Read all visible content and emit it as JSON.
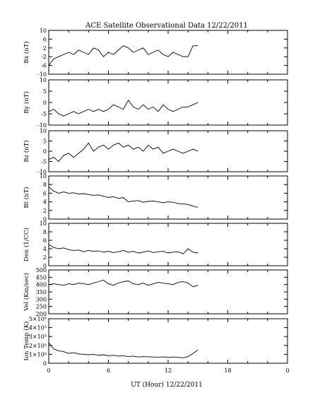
{
  "chart_data": {
    "type": "line",
    "title": "ACE Satellite Observational Data   12/22/2011",
    "xlabel": "UT (Hour)   12/22/2011",
    "xlim": [
      0,
      24
    ],
    "xticks": [
      "0",
      "6",
      "12",
      "18",
      "0"
    ],
    "x_range_of_data": [
      0,
      15.2
    ],
    "panels": [
      {
        "name": "Bx",
        "ylabel": "Bx (nT)",
        "ylim": [
          -10,
          10
        ],
        "ytick_values": [
          10,
          6,
          2,
          -2,
          -6,
          -10
        ],
        "ytick_labels": [
          "10",
          "6",
          "2",
          "-2",
          "-6",
          "-10"
        ],
        "series": [
          {
            "x": [
              0,
              0.5,
              1,
              1.5,
              2,
              2.5,
              3,
              3.5,
              4,
              4.5,
              5,
              5.5,
              6,
              6.5,
              7,
              7.5,
              8,
              8.5,
              9,
              9.5,
              10,
              10.5,
              11,
              11.5,
              12,
              12.5,
              13,
              13.5,
              14,
              14.5,
              15
            ],
            "y": [
              -6,
              -3,
              -2,
              -1,
              0,
              -1,
              1,
              0,
              -1,
              2,
              1,
              -2,
              0,
              -1,
              1,
              3,
              2,
              0,
              1,
              2,
              -1,
              0,
              1,
              -1,
              -2,
              0,
              -1,
              -2,
              -2,
              3,
              3
            ]
          }
        ]
      },
      {
        "name": "By",
        "ylabel": "By (nT)",
        "ylim": [
          -10,
          10
        ],
        "ytick_values": [
          10,
          5,
          0,
          -5,
          -10
        ],
        "ytick_labels": [
          "10",
          "5",
          "0",
          "-5",
          "-10"
        ],
        "series": [
          {
            "x": [
              0,
              0.5,
              1,
              1.5,
              2,
              2.5,
              3,
              3.5,
              4,
              4.5,
              5,
              5.5,
              6,
              6.5,
              7,
              7.5,
              8,
              8.5,
              9,
              9.5,
              10,
              10.5,
              11,
              11.5,
              12,
              12.5,
              13,
              13.5,
              14,
              14.5,
              15
            ],
            "y": [
              -4,
              -3,
              -5,
              -6,
              -5,
              -4,
              -5,
              -4,
              -3,
              -4,
              -3,
              -4,
              -3,
              -1,
              -2,
              -3,
              1,
              -2,
              -3,
              -1,
              -3,
              -2,
              -4,
              -1,
              -3,
              -4,
              -3,
              -2,
              -2,
              -1,
              0
            ]
          }
        ]
      },
      {
        "name": "Bz",
        "ylabel": "Bz (nT)",
        "ylim": [
          -10,
          10
        ],
        "ytick_values": [
          10,
          5,
          0,
          -5,
          -10
        ],
        "ytick_labels": [
          "10",
          "5",
          "0",
          "-5",
          "-10"
        ],
        "series": [
          {
            "x": [
              0,
              0.5,
              1,
              1.5,
              2,
              2.5,
              3,
              3.5,
              4,
              4.5,
              5,
              5.5,
              6,
              6.5,
              7,
              7.5,
              8,
              8.5,
              9,
              9.5,
              10,
              10.5,
              11,
              11.5,
              12,
              12.5,
              13,
              13.5,
              14,
              14.5,
              15
            ],
            "y": [
              -4,
              -3,
              -5,
              -2,
              -1,
              -3,
              -1,
              1,
              4,
              0,
              2,
              3,
              1,
              3,
              4,
              2,
              3,
              1,
              2,
              0,
              3,
              1,
              2,
              -1,
              0,
              1,
              0,
              -1,
              0,
              1,
              0
            ]
          }
        ]
      },
      {
        "name": "Bt",
        "ylabel": "Bt (nT)",
        "ylim": [
          0,
          10
        ],
        "ytick_values": [
          10,
          8,
          6,
          4,
          2,
          0
        ],
        "ytick_labels": [
          "10",
          "8",
          "6",
          "4",
          "2",
          "0"
        ],
        "series": [
          {
            "x": [
              0,
              0.5,
              1,
              1.5,
              2,
              2.5,
              3,
              3.5,
              4,
              4.5,
              5,
              5.5,
              6,
              6.5,
              7,
              7.5,
              8,
              8.5,
              9,
              9.5,
              10,
              10.5,
              11,
              11.5,
              12,
              12.5,
              13,
              13.5,
              14,
              14.5,
              15
            ],
            "y": [
              7.5,
              6.5,
              6,
              6.3,
              6,
              6.1,
              5.8,
              5.9,
              5.7,
              5.5,
              5.6,
              5.3,
              5,
              5.2,
              4.8,
              5,
              4,
              4.2,
              4.3,
              3.9,
              4.1,
              4.2,
              4,
              3.8,
              4,
              3.9,
              3.6,
              3.5,
              3.4,
              3,
              2.7
            ]
          }
        ]
      },
      {
        "name": "Den",
        "ylabel": "Den (1/CC)",
        "ylim": [
          0,
          10
        ],
        "ytick_values": [
          10,
          8,
          6,
          4,
          2,
          0
        ],
        "ytick_labels": [
          "10",
          "8",
          "6",
          "4",
          "2",
          "0"
        ],
        "series": [
          {
            "x": [
              0,
              0.5,
              1,
              1.5,
              2,
              2.5,
              3,
              3.5,
              4,
              4.5,
              5,
              5.5,
              6,
              6.5,
              7,
              7.5,
              8,
              8.5,
              9,
              9.5,
              10,
              10.5,
              11,
              11.5,
              12,
              12.5,
              13,
              13.5,
              14,
              14.5,
              15
            ],
            "y": [
              5,
              4.3,
              4,
              4.2,
              3.8,
              3.6,
              3.7,
              3.3,
              3.6,
              3.4,
              3.5,
              3.2,
              3.4,
              3.1,
              3.3,
              3.6,
              3.2,
              3.4,
              3,
              3.2,
              3.5,
              3.1,
              3.3,
              3.4,
              3,
              3.2,
              3.3,
              2.8,
              4,
              3.2,
              3
            ]
          }
        ]
      },
      {
        "name": "Vel",
        "ylabel": "Vel (Km/sec)",
        "ylim": [
          200,
          500
        ],
        "ytick_values": [
          500,
          450,
          400,
          350,
          300,
          250,
          200
        ],
        "ytick_labels": [
          "500",
          "450",
          "400",
          "350",
          "300",
          "250",
          "200"
        ],
        "series": [
          {
            "x": [
              0,
              0.5,
              1,
              1.5,
              2,
              2.5,
              3,
              3.5,
              4,
              4.5,
              5,
              5.5,
              6,
              6.5,
              7,
              7.5,
              8,
              8.5,
              9,
              9.5,
              10,
              10.5,
              11,
              11.5,
              12,
              12.5,
              13,
              13.5,
              14,
              14.5,
              15
            ],
            "y": [
              400,
              405,
              400,
              395,
              405,
              400,
              410,
              405,
              400,
              410,
              420,
              430,
              405,
              395,
              410,
              420,
              425,
              405,
              400,
              410,
              395,
              405,
              415,
              410,
              405,
              400,
              415,
              420,
              410,
              385,
              395
            ]
          }
        ]
      },
      {
        "name": "Ion Temp",
        "ylabel": "Ion Temp (K)",
        "ylim": [
          0,
          500000
        ],
        "ytick_values": [
          500000,
          400000,
          300000,
          200000,
          100000,
          0
        ],
        "ytick_labels": [
          "5×10⁵",
          "4×10⁵",
          "3×10⁵",
          "2×10⁵",
          "1×10⁵",
          "0"
        ],
        "series": [
          {
            "x": [
              0,
              0.5,
              1,
              1.5,
              2,
              2.5,
              3,
              3.5,
              4,
              4.5,
              5,
              5.5,
              6,
              6.5,
              7,
              7.5,
              8,
              8.5,
              9,
              9.5,
              10,
              10.5,
              11,
              11.5,
              12,
              12.5,
              13,
              13.5,
              14,
              14.5,
              15
            ],
            "y": [
              230000,
              160000,
              140000,
              130000,
              110000,
              120000,
              105000,
              100000,
              95000,
              100000,
              90000,
              95000,
              85000,
              90000,
              80000,
              85000,
              75000,
              80000,
              70000,
              75000,
              72000,
              70000,
              68000,
              72000,
              65000,
              70000,
              68000,
              60000,
              75000,
              110000,
              150000
            ]
          }
        ]
      }
    ]
  }
}
